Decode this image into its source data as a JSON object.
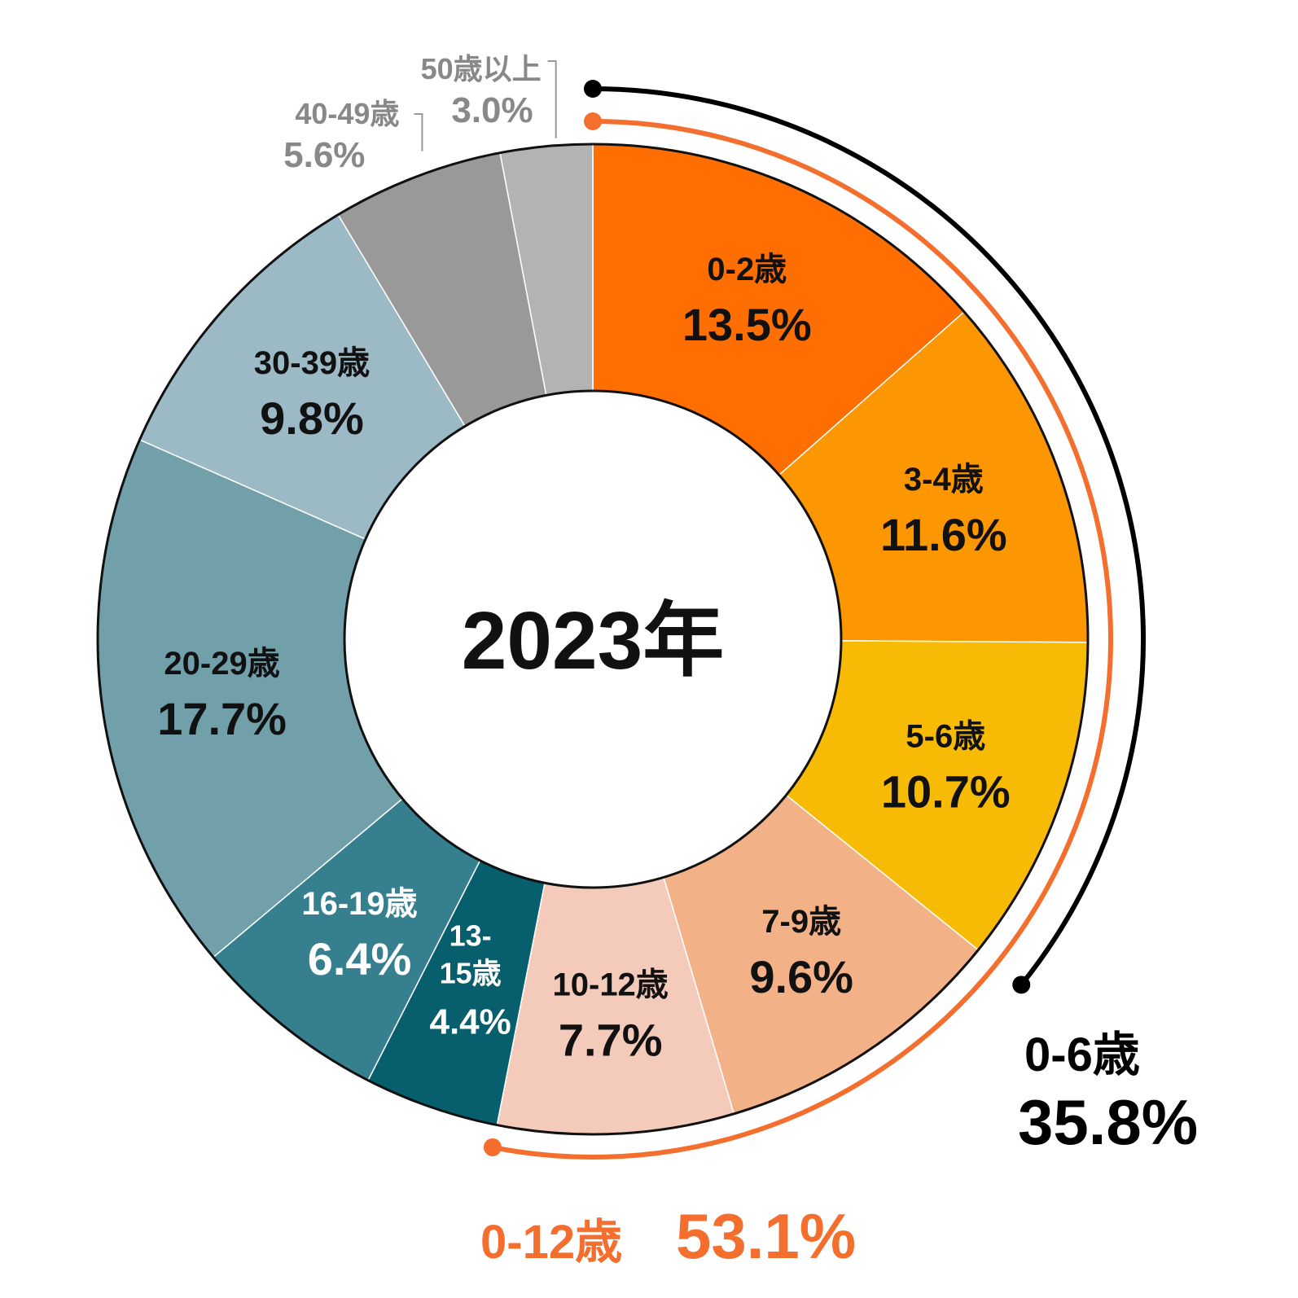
{
  "chart_data": {
    "type": "donut",
    "center_label": "2023年",
    "slices": [
      {
        "label": "0-2歳",
        "value": 13.5,
        "value_text": "13.5%",
        "color": "#FF6E00",
        "text_color": "#111111"
      },
      {
        "label": "3-4歳",
        "value": 11.6,
        "value_text": "11.6%",
        "color": "#FC9601",
        "text_color": "#111111"
      },
      {
        "label": "5-6歳",
        "value": 10.7,
        "value_text": "10.7%",
        "color": "#F8BB05",
        "text_color": "#111111"
      },
      {
        "label": "7-9歳",
        "value": 9.6,
        "value_text": "9.6%",
        "color": "#F3B187",
        "text_color": "#111111"
      },
      {
        "label": "10-12歳",
        "value": 7.7,
        "value_text": "7.7%",
        "color": "#F4CABA",
        "text_color": "#111111"
      },
      {
        "label": "13-15歳",
        "label_lines": [
          "13-",
          "15歳"
        ],
        "value": 4.4,
        "value_text": "4.4%",
        "color": "#075E6D",
        "text_color": "#FFFFFF"
      },
      {
        "label": "16-19歳",
        "value": 6.4,
        "value_text": "6.4%",
        "color": "#357F8F",
        "text_color": "#FFFFFF"
      },
      {
        "label": "20-29歳",
        "value": 17.7,
        "value_text": "17.7%",
        "color": "#71A0AB",
        "text_color": "#111111"
      },
      {
        "label": "30-39歳",
        "value": 9.8,
        "value_text": "9.8%",
        "color": "#9CBAC6",
        "text_color": "#111111"
      },
      {
        "label": "40-49歳",
        "value": 5.6,
        "value_text": "5.6%",
        "color": "#999999",
        "text_color": "#888888",
        "outside": true
      },
      {
        "label": "50歳以上",
        "value": 3.0,
        "value_text": "3.0%",
        "color": "#B3B3B3",
        "text_color": "#888888",
        "outside": true
      }
    ],
    "brackets": [
      {
        "label": "0-6歳",
        "value": 35.8,
        "value_text": "35.8%",
        "color": "#000000"
      },
      {
        "label": "0-12歳",
        "value": 53.1,
        "value_text": "53.1%",
        "color": "#F46E2E"
      }
    ]
  }
}
